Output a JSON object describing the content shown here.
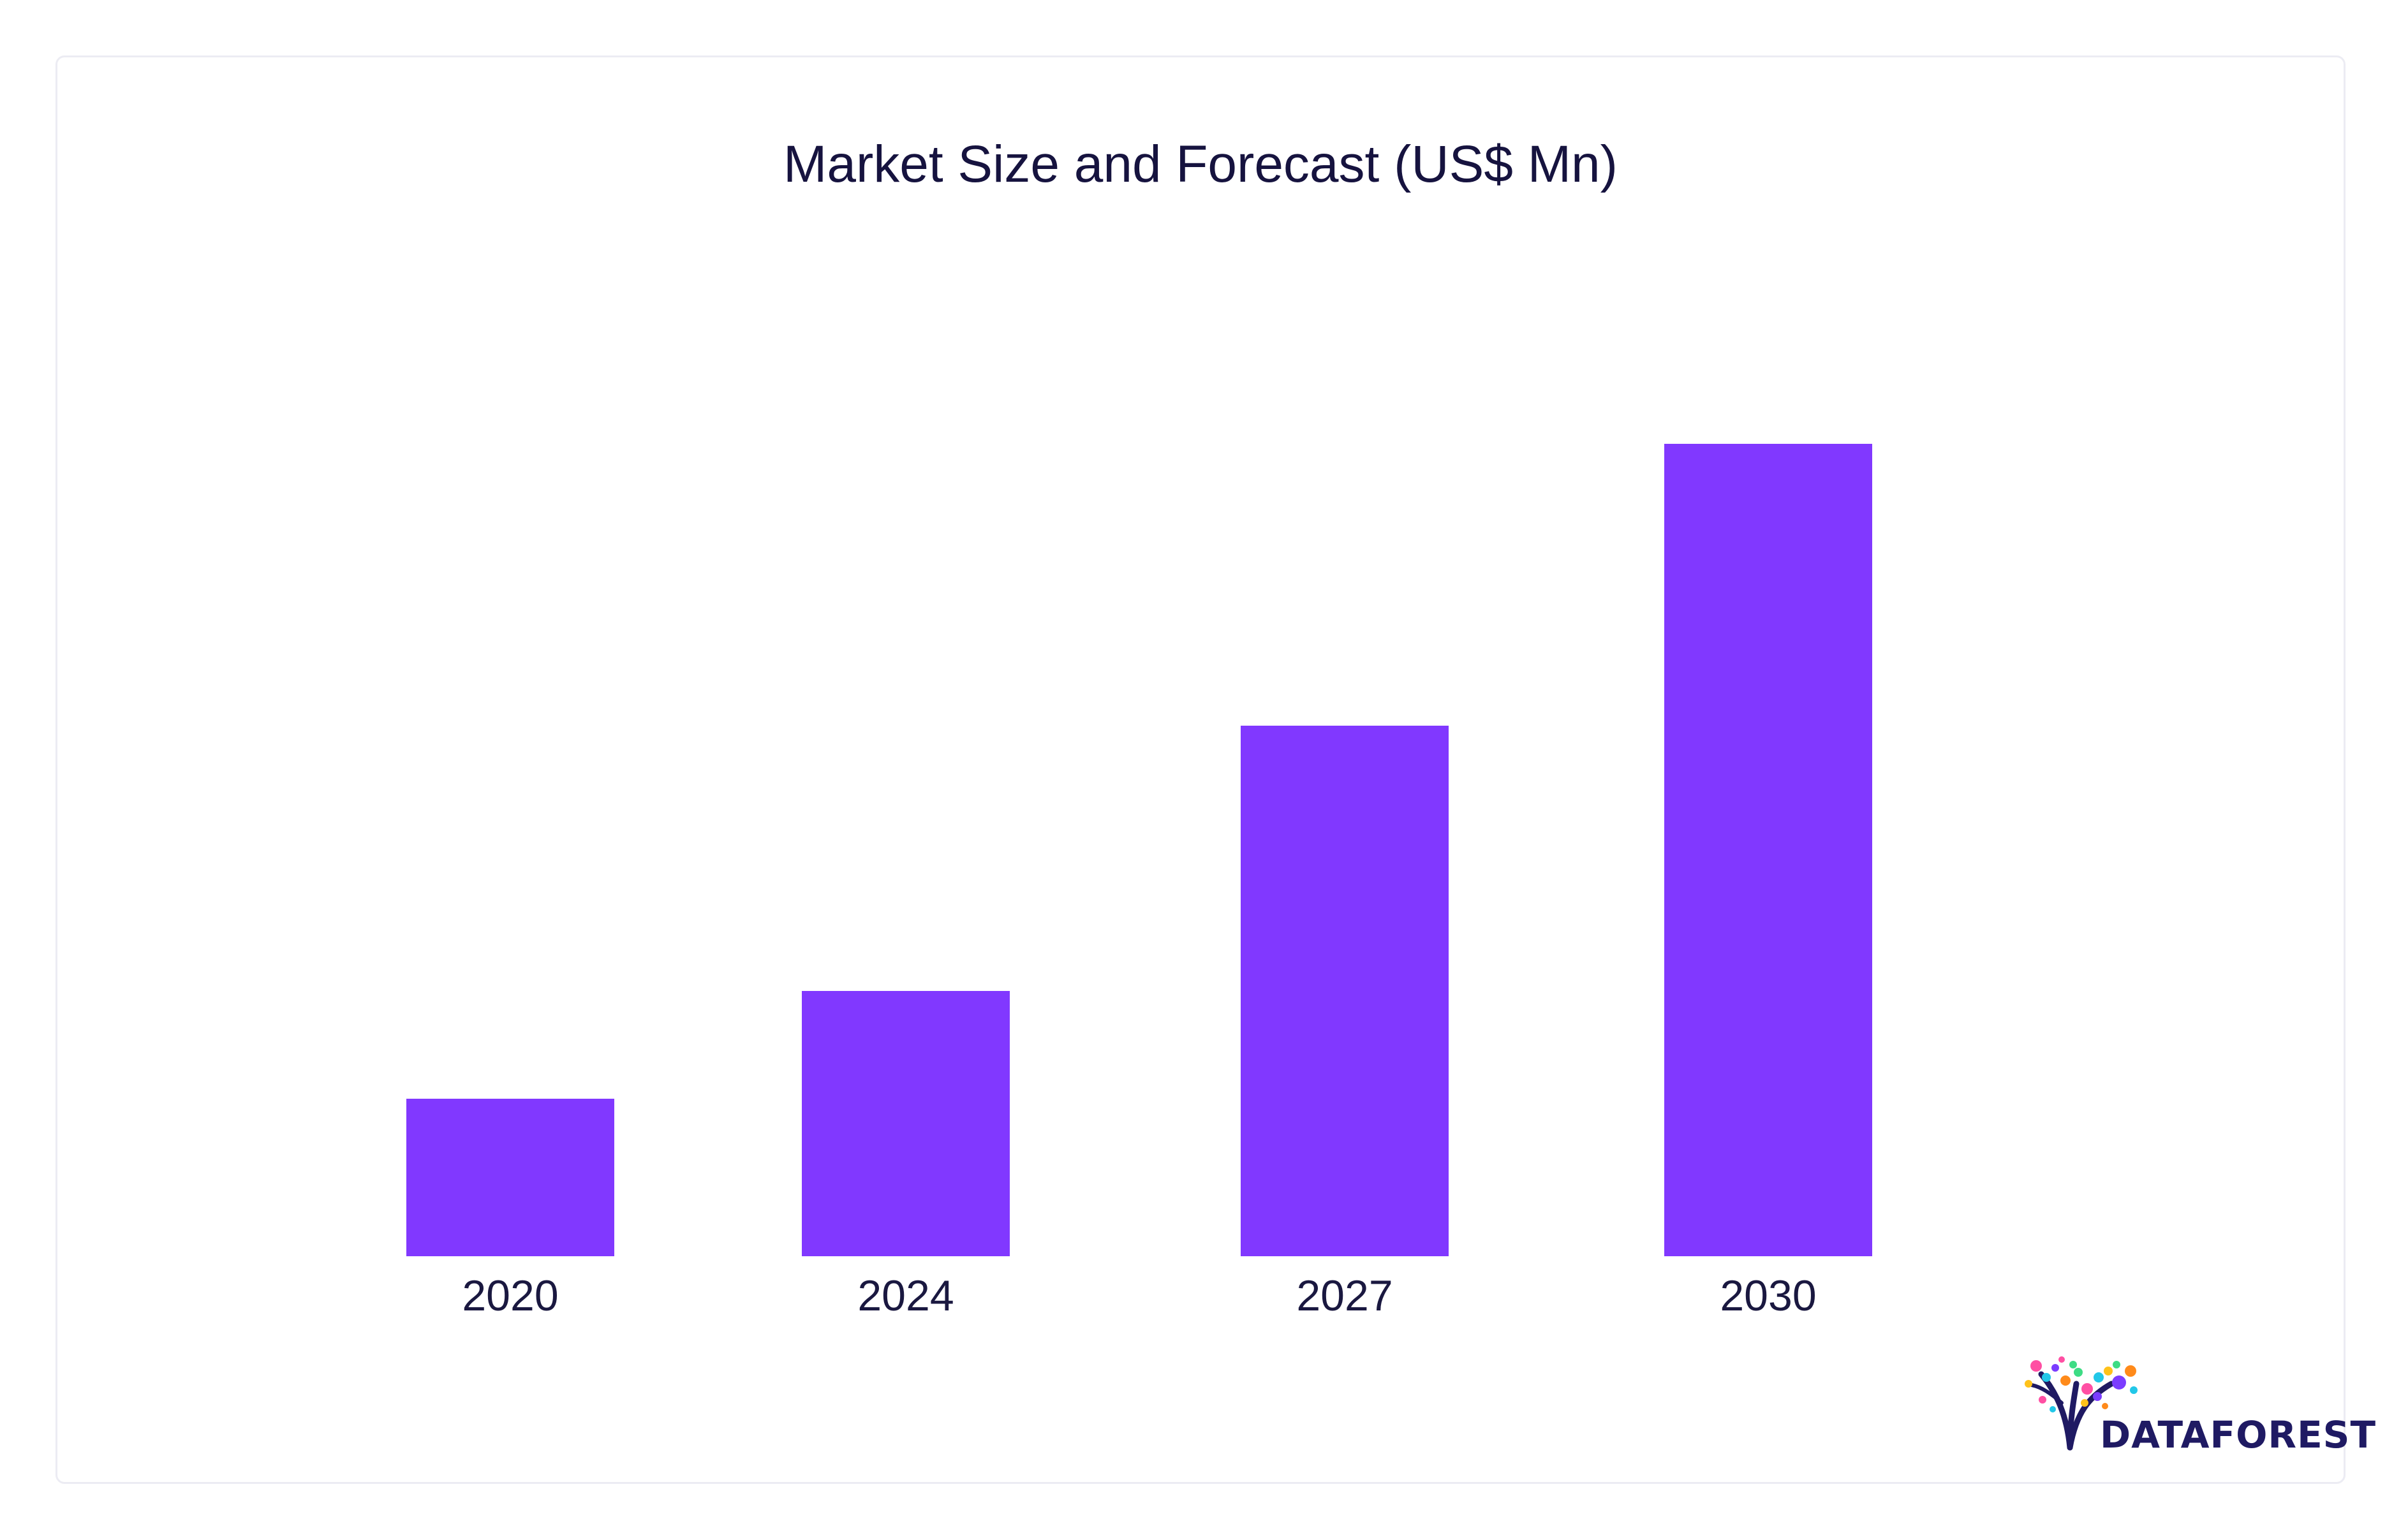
{
  "chart_data": {
    "type": "bar",
    "title": "Market Size and Forecast (US$ Mn)",
    "categories": [
      "2020",
      "2024",
      "2027",
      "2030"
    ],
    "values": [
      19,
      32,
      64,
      98
    ],
    "ylim": [
      0,
      100
    ],
    "xlabel": "",
    "ylabel": "",
    "grid": false,
    "legend": "none",
    "bar_color": "#8138ff"
  },
  "logo": {
    "text": "DATAFOREST",
    "colors": {
      "trunk": "#1f1a63",
      "dots": [
        "#ff4fa3",
        "#22c7e8",
        "#ffc21a",
        "#7b3cff",
        "#ff8a1a",
        "#3ddc84"
      ]
    }
  }
}
